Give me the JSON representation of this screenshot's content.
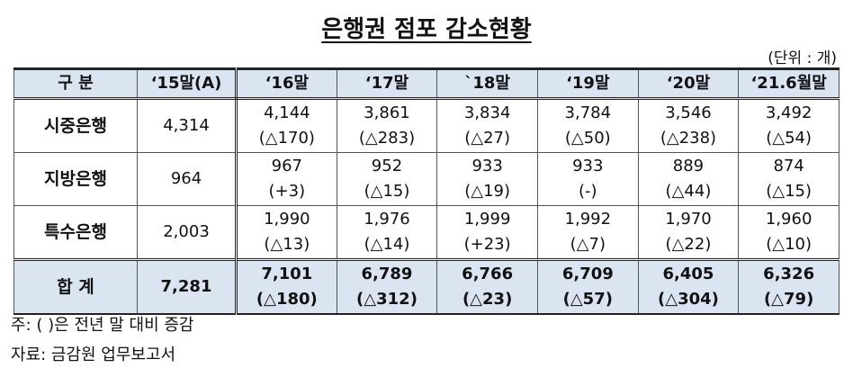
{
  "title": "은행권 점포 감소현황",
  "unit": "(단위 : 개)",
  "table": {
    "header": [
      "구 분",
      "‘15말(A)",
      "‘16말",
      "‘17말",
      "`18말",
      "‘19말",
      "‘20말",
      "‘21.6월말"
    ],
    "rows": [
      {
        "label": "시중은행",
        "base": "4,314",
        "cells": [
          {
            "value": "4,144",
            "change": "(△170)"
          },
          {
            "value": "3,861",
            "change": "(△283)"
          },
          {
            "value": "3,834",
            "change": "(△27)"
          },
          {
            "value": "3,784",
            "change": "(△50)"
          },
          {
            "value": "3,546",
            "change": "(△238)"
          },
          {
            "value": "3,492",
            "change": "(△54)"
          }
        ]
      },
      {
        "label": "지방은행",
        "base": "964",
        "cells": [
          {
            "value": "967",
            "change": "(+3)"
          },
          {
            "value": "952",
            "change": "(△15)"
          },
          {
            "value": "933",
            "change": "(△19)"
          },
          {
            "value": "933",
            "change": "(-)"
          },
          {
            "value": "889",
            "change": "(△44)"
          },
          {
            "value": "874",
            "change": "(△15)"
          }
        ]
      },
      {
        "label": "특수은행",
        "base": "2,003",
        "cells": [
          {
            "value": "1,990",
            "change": "(△13)"
          },
          {
            "value": "1,976",
            "change": "(△14)"
          },
          {
            "value": "1,999",
            "change": "(+23)"
          },
          {
            "value": "1,992",
            "change": "(△7)"
          },
          {
            "value": "1,970",
            "change": "(△22)"
          },
          {
            "value": "1,960",
            "change": "(△10)"
          }
        ]
      }
    ],
    "total": {
      "label": "합 계",
      "base": "7,281",
      "cells": [
        {
          "value": "7,101",
          "change": "(△180)"
        },
        {
          "value": "6,789",
          "change": "(△312)"
        },
        {
          "value": "6,766",
          "change": "(△23)"
        },
        {
          "value": "6,709",
          "change": "(△57)"
        },
        {
          "value": "6,405",
          "change": "(△304)"
        },
        {
          "value": "6,326",
          "change": "(△79)"
        }
      ]
    }
  },
  "notes": [
    "주: ( )은 전년 말 대비 증감",
    "자료: 금감원 업무보고서"
  ]
}
